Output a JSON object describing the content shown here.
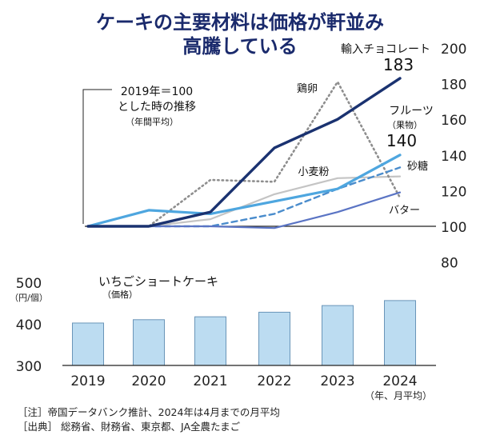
{
  "title_lines": [
    "ケーキの主要材料は価格が軒並み",
    "高騰している"
  ],
  "chart_data": [
    {
      "type": "line",
      "note_lines": [
        "2019年＝100",
        "とした時の推移",
        "（年間平均）"
      ],
      "x": [
        "2019",
        "2020",
        "2021",
        "2022",
        "2023",
        "2024"
      ],
      "ylim": [
        80,
        200
      ],
      "yticks": [
        80,
        100,
        120,
        140,
        160,
        180,
        200
      ],
      "grid": false,
      "series": [
        {
          "name": "輸入チョコレート",
          "color": "#1a3270",
          "style": "solid",
          "values": [
            100,
            100,
            108,
            144,
            160,
            183
          ],
          "end_label": "183"
        },
        {
          "name": "鶏卵",
          "color": "#8e8e8e",
          "style": "dotted",
          "values": [
            100,
            100,
            126,
            125,
            181,
            116
          ]
        },
        {
          "name": "フルーツ",
          "sublabel": "（果物）",
          "color": "#4ea6df",
          "style": "solid",
          "values": [
            100,
            109,
            107,
            114,
            121,
            140
          ],
          "end_label": "140"
        },
        {
          "name": "砂糖",
          "color": "#4a8ccc",
          "style": "dashed",
          "values": [
            100,
            100,
            100,
            107,
            121,
            133
          ]
        },
        {
          "name": "小麦粉",
          "color": "#c4c4c4",
          "style": "solid",
          "values": [
            100,
            100,
            104,
            118,
            127,
            128
          ]
        },
        {
          "name": "バター",
          "color": "#5a74c4",
          "style": "solid",
          "values": [
            100,
            100,
            100,
            99,
            108,
            119
          ]
        }
      ]
    },
    {
      "type": "bar",
      "title_lines": [
        "いちごショートケーキ",
        "（価格）"
      ],
      "unit_label": "（円/個）",
      "categories": [
        "2019",
        "2020",
        "2021",
        "2022",
        "2023",
        "2024"
      ],
      "x_note": "（年、月平均）",
      "values": [
        402,
        410,
        417,
        428,
        444,
        456
      ],
      "ylim": [
        300,
        500
      ],
      "yticks": [
        300,
        400,
        500
      ],
      "bar_color": "#bcdcf1",
      "bar_border": "#6a95b8"
    }
  ],
  "footnotes": [
    "［注］帝国データバンク推計、2024年は4月までの月平均",
    "［出典］ 総務省、財務省、東京都、JA全農たまご"
  ]
}
